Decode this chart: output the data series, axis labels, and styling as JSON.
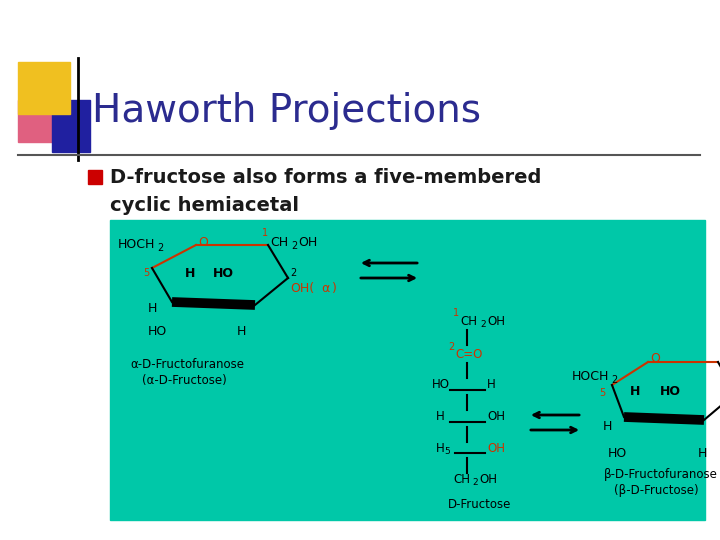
{
  "title": "Haworth Projections",
  "title_color": "#2b2b8f",
  "title_fontsize": 28,
  "bullet_text_line1": "D-fructose also forms a five-membered",
  "bullet_text_line2": "cyclic hemiacetal",
  "bullet_color": "#cc0000",
  "text_color": "#1a1a1a",
  "background_color": "#ffffff",
  "teal_box_color": "#00c8a8",
  "red_color": "#cc3300",
  "black_color": "#000000"
}
